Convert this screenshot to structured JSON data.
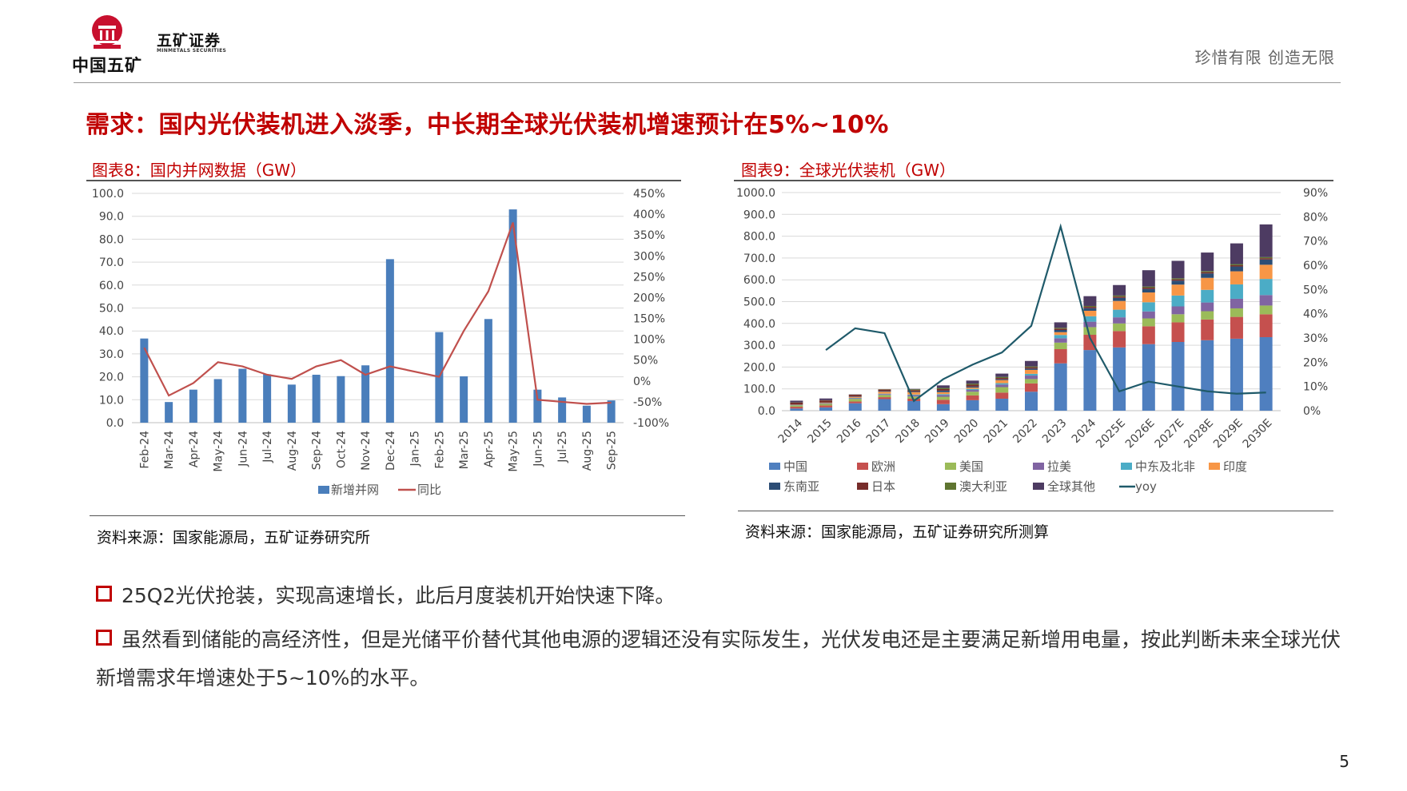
{
  "header": {
    "brand_cn": "中国五矿",
    "company_cn": "五矿证券",
    "company_en": "MINMETALS SECURITIES",
    "slogan": "珍惜有限  创造无限"
  },
  "page_title": "需求：国内光伏装机进入淡季，中长期全球光伏装机增速预计在5%~10%",
  "figures": {
    "left_title": "图表8：国内并网数据（GW）",
    "left_source": "资料来源：国家能源局，五矿证券研究所",
    "right_title": "图表9：全球光伏装机（GW）",
    "right_source": "资料来源：国家能源局，五矿证券研究所测算"
  },
  "colors": {
    "accent": "#c00000",
    "bar_blue": "#4a7ebb",
    "line_red": "#c0504d",
    "yoy_teal": "#1f5a6a"
  },
  "chart_data": [
    {
      "type": "bar",
      "title": "图表8：国内并网数据（GW）",
      "categories": [
        "Feb-24",
        "Mar-24",
        "Apr-24",
        "May-24",
        "Jun-24",
        "Jul-24",
        "Aug-24",
        "Sep-24",
        "Oct-24",
        "Nov-24",
        "Dec-24",
        "Jan-25",
        "Feb-25",
        "Mar-25",
        "Apr-25",
        "May-25",
        "Jun-25",
        "Jul-25",
        "Aug-25",
        "Sep-25"
      ],
      "series": [
        {
          "name": "新增并网",
          "axis": "left",
          "values": [
            36.7,
            9.0,
            14.4,
            19.0,
            23.5,
            21.1,
            16.6,
            20.9,
            20.3,
            25.0,
            71.3,
            null,
            39.5,
            20.2,
            45.2,
            93.0,
            14.4,
            11.0,
            7.4,
            9.7
          ]
        },
        {
          "name": "同比",
          "axis": "right",
          "values": [
            80,
            -35,
            -5,
            45,
            35,
            15,
            5,
            35,
            50,
            15,
            35,
            null,
            10,
            120,
            215,
            380,
            -45,
            -50,
            -55,
            -52
          ]
        }
      ],
      "ylim": [
        0,
        100
      ],
      "y2lim": [
        -100,
        450
      ],
      "y_ticks": [
        "100.0",
        "90.0",
        "80.0",
        "70.0",
        "60.0",
        "50.0",
        "40.0",
        "30.0",
        "20.0",
        "10.0",
        "0.0"
      ],
      "y2_ticks": [
        "450%",
        "400%",
        "350%",
        "300%",
        "250%",
        "200%",
        "150%",
        "100%",
        "50%",
        "0%",
        "-50%",
        "-100%"
      ],
      "legend": [
        "新增并网",
        "同比"
      ]
    },
    {
      "type": "bar",
      "title": "图表9：全球光伏装机（GW）",
      "stacked": true,
      "categories": [
        "2014",
        "2015",
        "2016",
        "2017",
        "2018",
        "2019",
        "2020",
        "2021",
        "2022",
        "2023",
        "2024",
        "2025E",
        "2026E",
        "2027E",
        "2028E",
        "2029E",
        "2030E"
      ],
      "series": [
        {
          "name": "中国",
          "values": [
            10,
            15,
            34,
            53,
            44,
            30,
            48,
            55,
            87,
            217,
            278,
            290,
            305,
            315,
            323,
            330,
            337
          ]
        },
        {
          "name": "欧洲",
          "values": [
            8,
            9,
            8,
            9,
            11,
            20,
            22,
            28,
            38,
            65,
            70,
            75,
            82,
            90,
            95,
            100,
            105
          ]
        },
        {
          "name": "美国",
          "values": [
            6,
            7,
            12,
            10,
            10,
            14,
            17,
            25,
            20,
            30,
            35,
            35,
            36,
            37,
            38,
            39,
            40
          ]
        },
        {
          "name": "拉美",
          "values": [
            1,
            2,
            3,
            4,
            6,
            8,
            8,
            12,
            16,
            20,
            25,
            28,
            32,
            36,
            40,
            44,
            48
          ]
        },
        {
          "name": "中东及北非",
          "values": [
            1,
            1,
            2,
            2,
            3,
            4,
            5,
            6,
            8,
            15,
            25,
            35,
            42,
            50,
            58,
            66,
            74
          ]
        },
        {
          "name": "印度",
          "values": [
            1,
            2,
            4,
            9,
            11,
            9,
            6,
            14,
            18,
            13,
            25,
            40,
            45,
            50,
            55,
            60,
            65
          ]
        },
        {
          "name": "东南亚",
          "values": [
            1,
            1,
            2,
            3,
            3,
            7,
            5,
            4,
            6,
            10,
            12,
            14,
            16,
            18,
            20,
            22,
            24
          ]
        },
        {
          "name": "日本",
          "values": [
            9,
            10,
            8,
            7,
            6,
            7,
            8,
            6,
            6,
            6,
            6,
            6,
            6,
            6,
            6,
            6,
            6
          ]
        },
        {
          "name": "澳大利亚",
          "values": [
            1,
            1,
            1,
            1,
            4,
            5,
            5,
            5,
            4,
            4,
            4,
            5,
            5,
            5,
            5,
            5,
            5
          ]
        },
        {
          "name": "全球其他",
          "values": [
            8,
            8,
            1,
            0,
            2,
            12,
            14,
            15,
            25,
            25,
            45,
            48,
            75,
            80,
            85,
            95,
            150
          ]
        }
      ],
      "yoy": {
        "name": "yoy",
        "values": [
          null,
          25,
          34,
          32,
          4,
          13,
          19,
          24,
          35,
          76,
          30,
          8,
          12,
          10,
          8,
          7,
          7.5
        ]
      },
      "ylim": [
        0,
        1000
      ],
      "y2lim": [
        0,
        90
      ],
      "y_ticks": [
        "1000.0",
        "900.0",
        "800.0",
        "700.0",
        "600.0",
        "500.0",
        "400.0",
        "300.0",
        "200.0",
        "100.0",
        "0.0"
      ],
      "y2_ticks": [
        "90%",
        "80%",
        "70%",
        "60%",
        "50%",
        "40%",
        "30%",
        "20%",
        "10%",
        "0%"
      ],
      "series_colors": [
        "#4f7fbf",
        "#c5504e",
        "#9bbb59",
        "#8064a2",
        "#4bacc6",
        "#f79646",
        "#2c4d75",
        "#772c2a",
        "#5f7530",
        "#4d3b62"
      ],
      "legend": [
        "中国",
        "欧洲",
        "美国",
        "拉美",
        "中东及北非",
        "印度",
        "东南亚",
        "日本",
        "澳大利亚",
        "全球其他",
        "yoy"
      ]
    }
  ],
  "bullets": [
    "25Q2光伏抢装，实现高速增长，此后月度装机开始快速下降。",
    "虽然看到储能的高经济性，但是光储平价替代其他电源的逻辑还没有实际发生，光伏发电还是主要满足新增用电量，按此判断未来全球光伏新增需求年增速处于5~10%的水平。"
  ],
  "page_number": "5"
}
